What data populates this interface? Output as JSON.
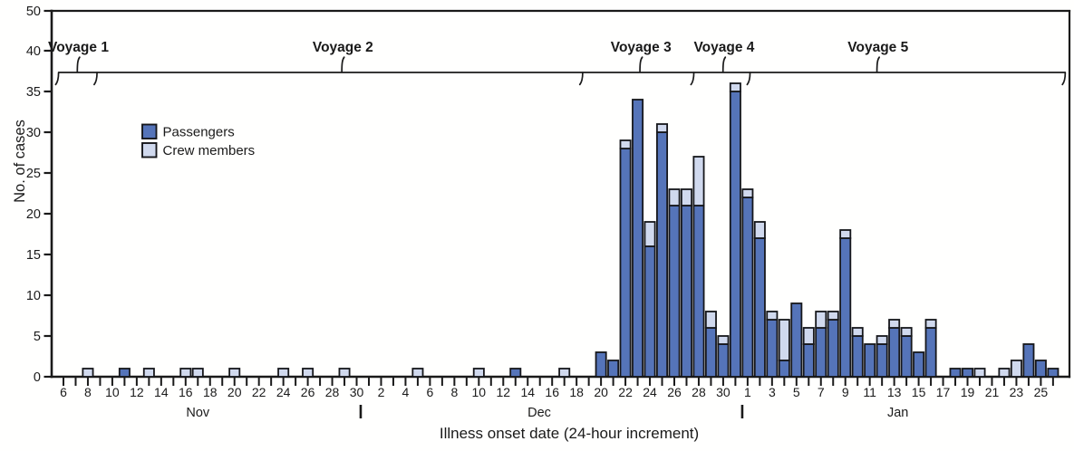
{
  "chart_data": {
    "type": "stacked-bar",
    "xlabel": "Illness onset date (24-hour increment)",
    "ylabel": "No. of cases",
    "y_ticks": [
      0,
      5,
      10,
      15,
      20,
      25,
      30,
      35,
      40,
      50
    ],
    "y_axis_note": "45 label skipped; 40-50 drawn as a single tick interval",
    "grid": false,
    "legend_position": "upper-left-inside",
    "x_axis": {
      "months": [
        {
          "label": "Nov",
          "first_day": 6,
          "last_day": 30,
          "labeled_day_parity": "even",
          "label_center_day_index": 11.0
        },
        {
          "label": "Dec",
          "first_day": 1,
          "last_day": 31,
          "labeled_day_parity": "even",
          "label_center_day_index": 38.95
        },
        {
          "label": "Jan",
          "first_day": 1,
          "last_day": 26,
          "labeled_day_parity": "odd",
          "label_center_day_index": 68.3
        }
      ],
      "month_separator_day_indices": [
        24.33,
        55.56
      ],
      "tick_every_days": 1,
      "label_every_days": 2
    },
    "series": [
      {
        "name": "Passengers",
        "color": "#5574b9"
      },
      {
        "name": "Crew members",
        "color": "#d0d9ee"
      }
    ],
    "bars_format": [
      "month",
      "day",
      "passengers",
      "crew"
    ],
    "bars": [
      [
        "Nov",
        8,
        0,
        1
      ],
      [
        "Nov",
        11,
        1,
        0
      ],
      [
        "Nov",
        13,
        0,
        1
      ],
      [
        "Nov",
        16,
        0,
        1
      ],
      [
        "Nov",
        17,
        0,
        1
      ],
      [
        "Nov",
        20,
        0,
        1
      ],
      [
        "Nov",
        24,
        0,
        1
      ],
      [
        "Nov",
        26,
        0,
        1
      ],
      [
        "Nov",
        29,
        0,
        1
      ],
      [
        "Dec",
        5,
        0,
        1
      ],
      [
        "Dec",
        10,
        0,
        1
      ],
      [
        "Dec",
        13,
        1,
        0
      ],
      [
        "Dec",
        17,
        0,
        1
      ],
      [
        "Dec",
        20,
        3,
        0
      ],
      [
        "Dec",
        21,
        2,
        0
      ],
      [
        "Dec",
        22,
        28,
        1
      ],
      [
        "Dec",
        23,
        34,
        0
      ],
      [
        "Dec",
        24,
        16,
        3
      ],
      [
        "Dec",
        25,
        30,
        1
      ],
      [
        "Dec",
        26,
        21,
        2
      ],
      [
        "Dec",
        27,
        21,
        2
      ],
      [
        "Dec",
        28,
        21,
        6
      ],
      [
        "Dec",
        29,
        6,
        2
      ],
      [
        "Dec",
        30,
        4,
        1
      ],
      [
        "Dec",
        31,
        35,
        1
      ],
      [
        "Jan",
        1,
        22,
        1
      ],
      [
        "Jan",
        2,
        17,
        2
      ],
      [
        "Jan",
        3,
        7,
        1
      ],
      [
        "Jan",
        4,
        2,
        5
      ],
      [
        "Jan",
        5,
        9,
        0
      ],
      [
        "Jan",
        6,
        4,
        2
      ],
      [
        "Jan",
        7,
        6,
        2
      ],
      [
        "Jan",
        8,
        7,
        1
      ],
      [
        "Jan",
        9,
        17,
        1
      ],
      [
        "Jan",
        10,
        5,
        1
      ],
      [
        "Jan",
        11,
        4,
        0
      ],
      [
        "Jan",
        12,
        4,
        1
      ],
      [
        "Jan",
        13,
        6,
        1
      ],
      [
        "Jan",
        14,
        5,
        1
      ],
      [
        "Jan",
        15,
        3,
        0
      ],
      [
        "Jan",
        16,
        6,
        1
      ],
      [
        "Jan",
        18,
        1,
        0
      ],
      [
        "Jan",
        19,
        1,
        0
      ],
      [
        "Jan",
        20,
        0,
        1
      ],
      [
        "Jan",
        22,
        0,
        1
      ],
      [
        "Jan",
        23,
        0,
        2
      ],
      [
        "Jan",
        24,
        4,
        0
      ],
      [
        "Jan",
        25,
        2,
        0
      ],
      [
        "Jan",
        26,
        1,
        0
      ]
    ],
    "voyages": [
      {
        "label": "Voyage 1",
        "from_day_index": -0.4,
        "to_day_index": 2.75,
        "pointer_day_index": 1.15
      },
      {
        "label": "Voyage 2",
        "from_day_index": 2.75,
        "to_day_index": 42.5,
        "pointer_day_index": 22.8
      },
      {
        "label": "Voyage 3",
        "from_day_index": 42.5,
        "to_day_index": 51.6,
        "pointer_day_index": 47.2
      },
      {
        "label": "Voyage 4",
        "from_day_index": 51.6,
        "to_day_index": 56.2,
        "pointer_day_index": 54.0
      },
      {
        "label": "Voyage 5",
        "from_day_index": 56.2,
        "to_day_index": 82.0,
        "pointer_day_index": 66.6
      }
    ]
  },
  "colors": {
    "passengers": "#5574b9",
    "crew": "#d0d9ee",
    "bar_stroke": "#16171b",
    "axis": "#1a1a1a",
    "background": "#fffffe"
  }
}
